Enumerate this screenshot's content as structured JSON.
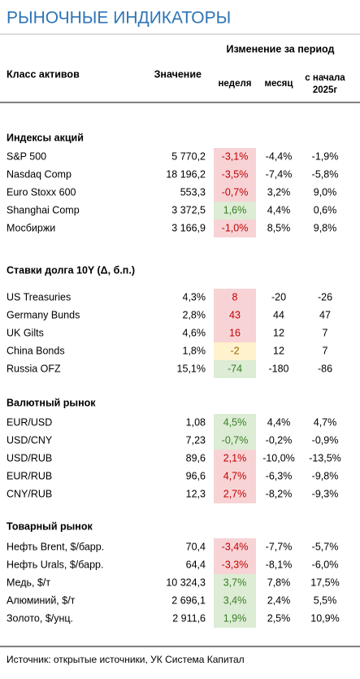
{
  "header": {
    "title": "РЫНОЧНЫЕ ИНДИКАТОРЫ",
    "period_header": "Изменение за период",
    "columns": [
      "Класс активов",
      "Значение",
      "неделя",
      "месяц"
    ],
    "ytd_header": [
      "с начала",
      "2025г"
    ]
  },
  "sections": [
    {
      "name": "Индексы акций",
      "rows": [
        {
          "label": "S&P 500",
          "value": "5 770,2",
          "week": "-3,1%",
          "month": "-4,4%",
          "ytd": "-1,9%",
          "week_bg": "#f8d3d6",
          "week_fg": "#c00000"
        },
        {
          "label": "Nasdaq Comp",
          "value": "18 196,2",
          "week": "-3,5%",
          "month": "-7,4%",
          "ytd": "-5,8%",
          "week_bg": "#f8d3d6",
          "week_fg": "#c00000"
        },
        {
          "label": "Euro Stoxx 600",
          "value": "553,3",
          "week": "-0,7%",
          "month": "3,2%",
          "ytd": "9,0%",
          "week_bg": "#f8d3d6",
          "week_fg": "#c00000"
        },
        {
          "label": "Shanghai Comp",
          "value": "3 372,5",
          "week": "1,6%",
          "month": "4,4%",
          "ytd": "0,6%",
          "week_bg": "#dcecd5",
          "week_fg": "#3a7d22"
        },
        {
          "label": "Мосбиржи",
          "value": "3 166,9",
          "week": "-1,0%",
          "month": "8,5%",
          "ytd": "9,8%",
          "week_bg": "#f8d3d6",
          "week_fg": "#c00000"
        }
      ]
    },
    {
      "name": "Ставки долга 10Y (Δ, б.п.)",
      "rows": [
        {
          "label": "US Treasuries",
          "value": "4,3%",
          "week": "8",
          "month": "-20",
          "ytd": "-26",
          "week_bg": "#f8d3d6",
          "week_fg": "#c00000"
        },
        {
          "label": "Germany Bunds",
          "value": "2,8%",
          "week": "43",
          "month": "44",
          "ytd": "47",
          "week_bg": "#f8d3d6",
          "week_fg": "#c00000"
        },
        {
          "label": "UK Gilts",
          "value": "4,6%",
          "week": "16",
          "month": "12",
          "ytd": "7",
          "week_bg": "#f8d3d6",
          "week_fg": "#c00000"
        },
        {
          "label": "China Bonds",
          "value": "1,8%",
          "week": "-2",
          "month": "12",
          "ytd": "7",
          "week_bg": "#fff2cc",
          "week_fg": "#9c6500"
        },
        {
          "label": "Russia OFZ",
          "value": "15,1%",
          "week": "-74",
          "month": "-180",
          "ytd": "-86",
          "week_bg": "#dcecd5",
          "week_fg": "#3a7d22"
        }
      ]
    },
    {
      "name": "Валютный рынок",
      "rows": [
        {
          "label": "EUR/USD",
          "value": "1,08",
          "week": "4,5%",
          "month": "4,4%",
          "ytd": "4,7%",
          "week_bg": "#dcecd5",
          "week_fg": "#3a7d22"
        },
        {
          "label": "USD/CNY",
          "value": "7,23",
          "week": "-0,7%",
          "month": "-0,2%",
          "ytd": "-0,9%",
          "week_bg": "#dcecd5",
          "week_fg": "#3a7d22"
        },
        {
          "label": "USD/RUB",
          "value": "89,6",
          "week": "2,1%",
          "month": "-10,0%",
          "ytd": "-13,5%",
          "week_bg": "#f8d3d6",
          "week_fg": "#c00000"
        },
        {
          "label": "EUR/RUB",
          "value": "96,6",
          "week": "4,7%",
          "month": "-6,3%",
          "ytd": "-9,8%",
          "week_bg": "#f8d3d6",
          "week_fg": "#c00000"
        },
        {
          "label": "CNY/RUB",
          "value": "12,3",
          "week": "2,7%",
          "month": "-8,2%",
          "ytd": "-9,3%",
          "week_bg": "#f8d3d6",
          "week_fg": "#c00000"
        }
      ]
    },
    {
      "name": "Товарный рынок",
      "rows": [
        {
          "label": "Нефть Brent, $/барр.",
          "value": "70,4",
          "week": "-3,4%",
          "month": "-7,7%",
          "ytd": "-5,7%",
          "week_bg": "#f8d3d6",
          "week_fg": "#c00000"
        },
        {
          "label": "Нефть Urals, $/барр.",
          "value": "64,4",
          "week": "-3,3%",
          "month": "-8,1%",
          "ytd": "-6,0%",
          "week_bg": "#f8d3d6",
          "week_fg": "#c00000"
        },
        {
          "label": "Медь, $/т",
          "value": "10 324,3",
          "week": "3,7%",
          "month": "7,8%",
          "ytd": "17,5%",
          "week_bg": "#dcecd5",
          "week_fg": "#3a7d22"
        },
        {
          "label": "Алюминий, $/т",
          "value": "2 696,1",
          "week": "3,4%",
          "month": "2,4%",
          "ytd": "5,5%",
          "week_bg": "#dcecd5",
          "week_fg": "#3a7d22"
        },
        {
          "label": "Золото, $/унц.",
          "value": "2 911,6",
          "week": "1,9%",
          "month": "2,5%",
          "ytd": "10,9%",
          "week_bg": "#dcecd5",
          "week_fg": "#3a7d22"
        }
      ]
    }
  ],
  "footer": {
    "source": "Источник: открытые источники, УК Система Капитал"
  }
}
